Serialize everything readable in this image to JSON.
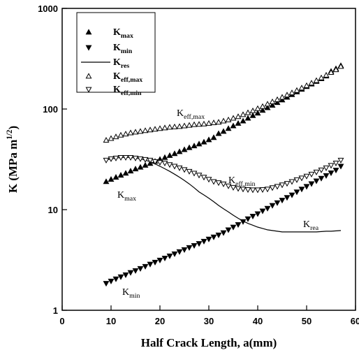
{
  "chart_data": {
    "type": "scatter",
    "xlabel": "Half Crack Length, a(mm)",
    "ylabel": "K (MPa m1/2)",
    "xlim": [
      0,
      60
    ],
    "xticks": [
      0,
      10,
      20,
      30,
      40,
      50,
      60
    ],
    "ylim": [
      1,
      1000
    ],
    "yticks": [
      1,
      10,
      100,
      1000
    ],
    "log_y": true,
    "legend": "upper left",
    "x": [
      9,
      10,
      11,
      12,
      13,
      14,
      15,
      16,
      17,
      18,
      19,
      20,
      21,
      22,
      23,
      24,
      25,
      26,
      27,
      28,
      29,
      30,
      31,
      32,
      33,
      34,
      35,
      36,
      37,
      38,
      39,
      40,
      41,
      42,
      43,
      44,
      45,
      46,
      47,
      48,
      49,
      50,
      51,
      52,
      53,
      54,
      55,
      56,
      57
    ],
    "series": [
      {
        "name": "Kmax",
        "color": "#000",
        "marker": "triangle-up",
        "filled": true,
        "values": [
          19,
          20,
          21,
          22,
          23,
          24.2,
          25.4,
          26.4,
          27.6,
          28.8,
          30.2,
          31.6,
          33,
          34.5,
          36,
          37.7,
          39.5,
          41.3,
          43,
          45,
          47,
          49.5,
          52,
          57,
          60,
          64,
          68,
          72,
          76,
          81,
          86,
          91,
          97,
          103,
          109,
          116,
          123,
          131,
          139,
          148,
          157,
          167,
          177,
          188,
          200,
          213,
          237,
          252,
          270
        ]
      },
      {
        "name": "Kmin",
        "color": "#000",
        "marker": "triangle-down",
        "filled": true,
        "values": [
          1.85,
          1.95,
          2.05,
          2.15,
          2.25,
          2.37,
          2.48,
          2.6,
          2.73,
          2.87,
          3.0,
          3.15,
          3.3,
          3.47,
          3.64,
          3.82,
          4.0,
          4.2,
          4.4,
          4.6,
          4.85,
          5.1,
          5.35,
          5.6,
          5.9,
          6.3,
          6.7,
          7.1,
          7.6,
          8.1,
          8.6,
          9.1,
          9.7,
          10.3,
          11,
          11.7,
          12.4,
          13.2,
          14,
          15,
          16,
          17,
          18.1,
          19.3,
          20.5,
          21.8,
          23.2,
          24.7,
          27
        ]
      },
      {
        "name": "Kres",
        "color": "#000",
        "marker": "line",
        "values": [
          31,
          32,
          32.5,
          33,
          33,
          33,
          32.5,
          32,
          31,
          30,
          28.5,
          27,
          25.5,
          24,
          22.5,
          21,
          19.5,
          18,
          16.5,
          15,
          14,
          13,
          12,
          11,
          10.2,
          9.5,
          8.8,
          8.2,
          7.7,
          7.3,
          7,
          6.7,
          6.5,
          6.3,
          6.2,
          6.1,
          6,
          6,
          6,
          6,
          6,
          6,
          6,
          6,
          6.05,
          6.1,
          6.1,
          6.15,
          6.2
        ]
      },
      {
        "name": "Keff,max",
        "color": "#000",
        "marker": "triangle-up",
        "filled": false,
        "values": [
          49,
          51,
          53,
          55,
          56.5,
          58,
          59,
          60,
          61,
          62,
          63,
          64,
          65,
          66,
          66.5,
          67,
          68,
          69,
          70,
          70.5,
          71,
          72,
          73,
          74,
          76,
          78,
          81,
          84,
          88,
          92,
          96,
          101,
          106,
          112,
          118,
          124,
          131,
          138,
          145,
          153,
          162,
          171,
          181,
          192,
          204,
          217,
          231,
          246,
          265
        ]
      },
      {
        "name": "Keff,min",
        "color": "#000",
        "marker": "triangle-down",
        "filled": false,
        "values": [
          31,
          32,
          32.5,
          33,
          33,
          33,
          32.5,
          32,
          31.5,
          31,
          30,
          29.5,
          29,
          28,
          27,
          26,
          25,
          24,
          23,
          22,
          21,
          20,
          19,
          18.5,
          18,
          17.2,
          16.6,
          16.2,
          16,
          15.8,
          15.7,
          15.7,
          15.8,
          16,
          16.5,
          17,
          17.6,
          18.2,
          19,
          19.8,
          20.6,
          21.5,
          22.5,
          23.6,
          24.8,
          26,
          27.5,
          29,
          31
        ]
      }
    ],
    "annotations": [
      "Keff,max",
      "Kmax",
      "Keff,min",
      "Krea",
      "Kmin"
    ]
  }
}
